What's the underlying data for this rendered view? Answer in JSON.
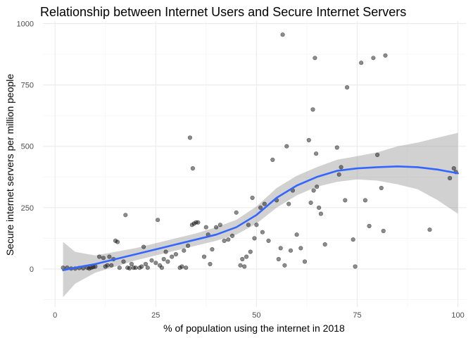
{
  "chart_data": {
    "type": "scatter",
    "title": "Relationship between Internet Users and Secure Internet Servers",
    "xlabel": "% of population using the internet in 2018",
    "ylabel": "Secure internet servers per million people",
    "xlim": [
      -3,
      102
    ],
    "ylim": [
      -155,
      1010
    ],
    "x_ticks": [
      {
        "value": 0,
        "label": "0"
      },
      {
        "value": 25,
        "label": "25"
      },
      {
        "value": 50,
        "label": "50"
      },
      {
        "value": 75,
        "label": "75"
      },
      {
        "value": 100,
        "label": "100"
      }
    ],
    "y_ticks": [
      {
        "value": 0,
        "label": "0"
      },
      {
        "value": 250,
        "label": "250"
      },
      {
        "value": 500,
        "label": "500"
      },
      {
        "value": 750,
        "label": "750"
      },
      {
        "value": 1000,
        "label": "1000"
      }
    ],
    "grid": true,
    "legend": "none",
    "point_color": "#000000",
    "line_color": "#3366FF",
    "band_color": "#999999",
    "points": [
      [
        2,
        5
      ],
      [
        3,
        5
      ],
      [
        4,
        2
      ],
      [
        5,
        2
      ],
      [
        6,
        4
      ],
      [
        7,
        3
      ],
      [
        8,
        5
      ],
      [
        8.5,
        2
      ],
      [
        9,
        5
      ],
      [
        9.5,
        8
      ],
      [
        10,
        10
      ],
      [
        11,
        50
      ],
      [
        12,
        45
      ],
      [
        12.5,
        10
      ],
      [
        13,
        15
      ],
      [
        13.5,
        50
      ],
      [
        14,
        15
      ],
      [
        14.5,
        40
      ],
      [
        15,
        115
      ],
      [
        15.5,
        110
      ],
      [
        16,
        5
      ],
      [
        17,
        30
      ],
      [
        17.5,
        220
      ],
      [
        18,
        5
      ],
      [
        18.5,
        3
      ],
      [
        19,
        20
      ],
      [
        19.5,
        5
      ],
      [
        20,
        5
      ],
      [
        21,
        5
      ],
      [
        21.5,
        10
      ],
      [
        22,
        90
      ],
      [
        22.5,
        20
      ],
      [
        23,
        5
      ],
      [
        24,
        35
      ],
      [
        25,
        25
      ],
      [
        25.5,
        200
      ],
      [
        26,
        15
      ],
      [
        26.5,
        5
      ],
      [
        27,
        40
      ],
      [
        27.5,
        70
      ],
      [
        28,
        30
      ],
      [
        29,
        50
      ],
      [
        30,
        60
      ],
      [
        31,
        5
      ],
      [
        31.5,
        10
      ],
      [
        32,
        75
      ],
      [
        32.5,
        5
      ],
      [
        33,
        95
      ],
      [
        33.5,
        535
      ],
      [
        34,
        180
      ],
      [
        34.2,
        410
      ],
      [
        34.5,
        185
      ],
      [
        35,
        190
      ],
      [
        35.5,
        190
      ],
      [
        37,
        50
      ],
      [
        37.5,
        170
      ],
      [
        38,
        140
      ],
      [
        38.5,
        20
      ],
      [
        39,
        80
      ],
      [
        40,
        170
      ],
      [
        41,
        180
      ],
      [
        42,
        115
      ],
      [
        43,
        120
      ],
      [
        44,
        135
      ],
      [
        45,
        230
      ],
      [
        46,
        15
      ],
      [
        46.5,
        40
      ],
      [
        47,
        10
      ],
      [
        47.5,
        50
      ],
      [
        48,
        180
      ],
      [
        48.5,
        70
      ],
      [
        49,
        290
      ],
      [
        49.5,
        125
      ],
      [
        50,
        180
      ],
      [
        51,
        250
      ],
      [
        51.5,
        150
      ],
      [
        52,
        265
      ],
      [
        53,
        115
      ],
      [
        54,
        445
      ],
      [
        55,
        280
      ],
      [
        55.5,
        40
      ],
      [
        56,
        85
      ],
      [
        56.5,
        955
      ],
      [
        57,
        15
      ],
      [
        57.5,
        500
      ],
      [
        58,
        265
      ],
      [
        58.5,
        75
      ],
      [
        59,
        320
      ],
      [
        60,
        140
      ],
      [
        61,
        85
      ],
      [
        62,
        30
      ],
      [
        63,
        525
      ],
      [
        63.5,
        270
      ],
      [
        64,
        650
      ],
      [
        64.2,
        320
      ],
      [
        64.5,
        860
      ],
      [
        64.8,
        470
      ],
      [
        65,
        335
      ],
      [
        65.5,
        250
      ],
      [
        66,
        225
      ],
      [
        67,
        100
      ],
      [
        70,
        495
      ],
      [
        70.5,
        385
      ],
      [
        71,
        415
      ],
      [
        72,
        280
      ],
      [
        72.5,
        740
      ],
      [
        74,
        120
      ],
      [
        74.5,
        10
      ],
      [
        76,
        840
      ],
      [
        77,
        280
      ],
      [
        78,
        175
      ],
      [
        79,
        860
      ],
      [
        80,
        465
      ],
      [
        81,
        330
      ],
      [
        81.5,
        155
      ],
      [
        82,
        870
      ],
      [
        93,
        160
      ],
      [
        98,
        370
      ],
      [
        99,
        410
      ],
      [
        99.5,
        395
      ]
    ],
    "smooth_line": [
      [
        2,
        -5
      ],
      [
        5,
        5
      ],
      [
        10,
        20
      ],
      [
        15,
        40
      ],
      [
        20,
        60
      ],
      [
        25,
        80
      ],
      [
        30,
        100
      ],
      [
        35,
        120
      ],
      [
        40,
        140
      ],
      [
        45,
        170
      ],
      [
        50,
        220
      ],
      [
        55,
        290
      ],
      [
        60,
        340
      ],
      [
        65,
        375
      ],
      [
        70,
        400
      ],
      [
        75,
        410
      ],
      [
        80,
        415
      ],
      [
        85,
        418
      ],
      [
        90,
        415
      ],
      [
        95,
        405
      ],
      [
        100,
        390
      ]
    ],
    "confidence_band": [
      [
        2,
        -115,
        110
      ],
      [
        5,
        -60,
        70
      ],
      [
        10,
        -15,
        55
      ],
      [
        15,
        10,
        70
      ],
      [
        20,
        35,
        85
      ],
      [
        25,
        55,
        105
      ],
      [
        30,
        75,
        125
      ],
      [
        35,
        95,
        145
      ],
      [
        40,
        115,
        170
      ],
      [
        45,
        140,
        200
      ],
      [
        50,
        185,
        255
      ],
      [
        55,
        250,
        330
      ],
      [
        60,
        300,
        380
      ],
      [
        65,
        335,
        415
      ],
      [
        70,
        355,
        445
      ],
      [
        75,
        365,
        460
      ],
      [
        80,
        360,
        475
      ],
      [
        85,
        345,
        500
      ],
      [
        90,
        325,
        515
      ],
      [
        95,
        280,
        535
      ],
      [
        100,
        225,
        555
      ]
    ]
  }
}
